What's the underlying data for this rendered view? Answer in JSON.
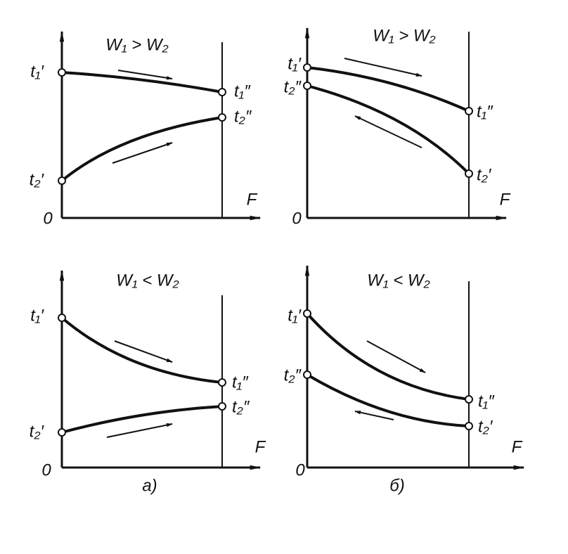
{
  "panels": [
    {
      "condition": "W₁ > W₂",
      "origin": "0",
      "axis_label": "F",
      "point_labels": [
        "t₁′",
        "t₂′",
        "t₁″",
        "t₂″"
      ]
    },
    {
      "condition": "W₁ > W₂",
      "origin": "0",
      "axis_label": "F",
      "point_labels": [
        "t₁′",
        "t₂″",
        "t₁″",
        "t₂′"
      ]
    },
    {
      "condition": "W₁ < W₂",
      "origin": "0",
      "axis_label": "F",
      "point_labels": [
        "t₁′",
        "t₂′",
        "t₁″",
        "t₂″"
      ]
    },
    {
      "condition": "W₁ < W₂",
      "origin": "0",
      "axis_label": "F",
      "point_labels": [
        "t₁′",
        "t₂″",
        "t₁″",
        "t₂′"
      ]
    }
  ],
  "captions": [
    "а)",
    "б)"
  ]
}
